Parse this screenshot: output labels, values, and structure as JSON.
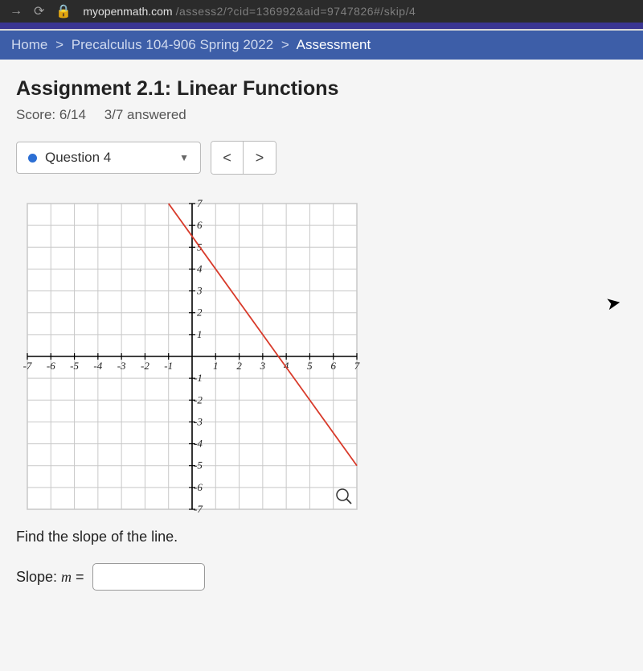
{
  "browser": {
    "host": "myopenmath.com",
    "path": "/assess2/?cid=136992&aid=9747826#/skip/4"
  },
  "breadcrumb": {
    "home": "Home",
    "course": "Precalculus 104-906 Spring 2022",
    "current": "Assessment"
  },
  "assignment": {
    "title": "Assignment 2.1: Linear Functions",
    "score_label": "Score: 6/14",
    "answered_label": "3/7 answered"
  },
  "question_selector": {
    "label": "Question 4"
  },
  "graph": {
    "type": "line",
    "xlim": [
      -7,
      7
    ],
    "ylim": [
      -7,
      7
    ],
    "xticks": [
      -7,
      -6,
      -5,
      -4,
      -3,
      -2,
      -1,
      1,
      2,
      3,
      4,
      5,
      6,
      7
    ],
    "yticks": [
      -7,
      -6,
      -5,
      -4,
      -3,
      -2,
      -1,
      1,
      2,
      3,
      4,
      5,
      6,
      7
    ],
    "grid_color": "#c8c8c8",
    "axis_color": "#000000",
    "line_color": "#d83a2a",
    "line_points": [
      [
        -1,
        7
      ],
      [
        7,
        -5
      ]
    ],
    "background_color": "#ffffff",
    "tick_font": "italic 13px serif"
  },
  "prompt": "Find the slope of the line.",
  "answer": {
    "label_prefix": "Slope: ",
    "variable": "m",
    "equals": " = ",
    "value": ""
  }
}
